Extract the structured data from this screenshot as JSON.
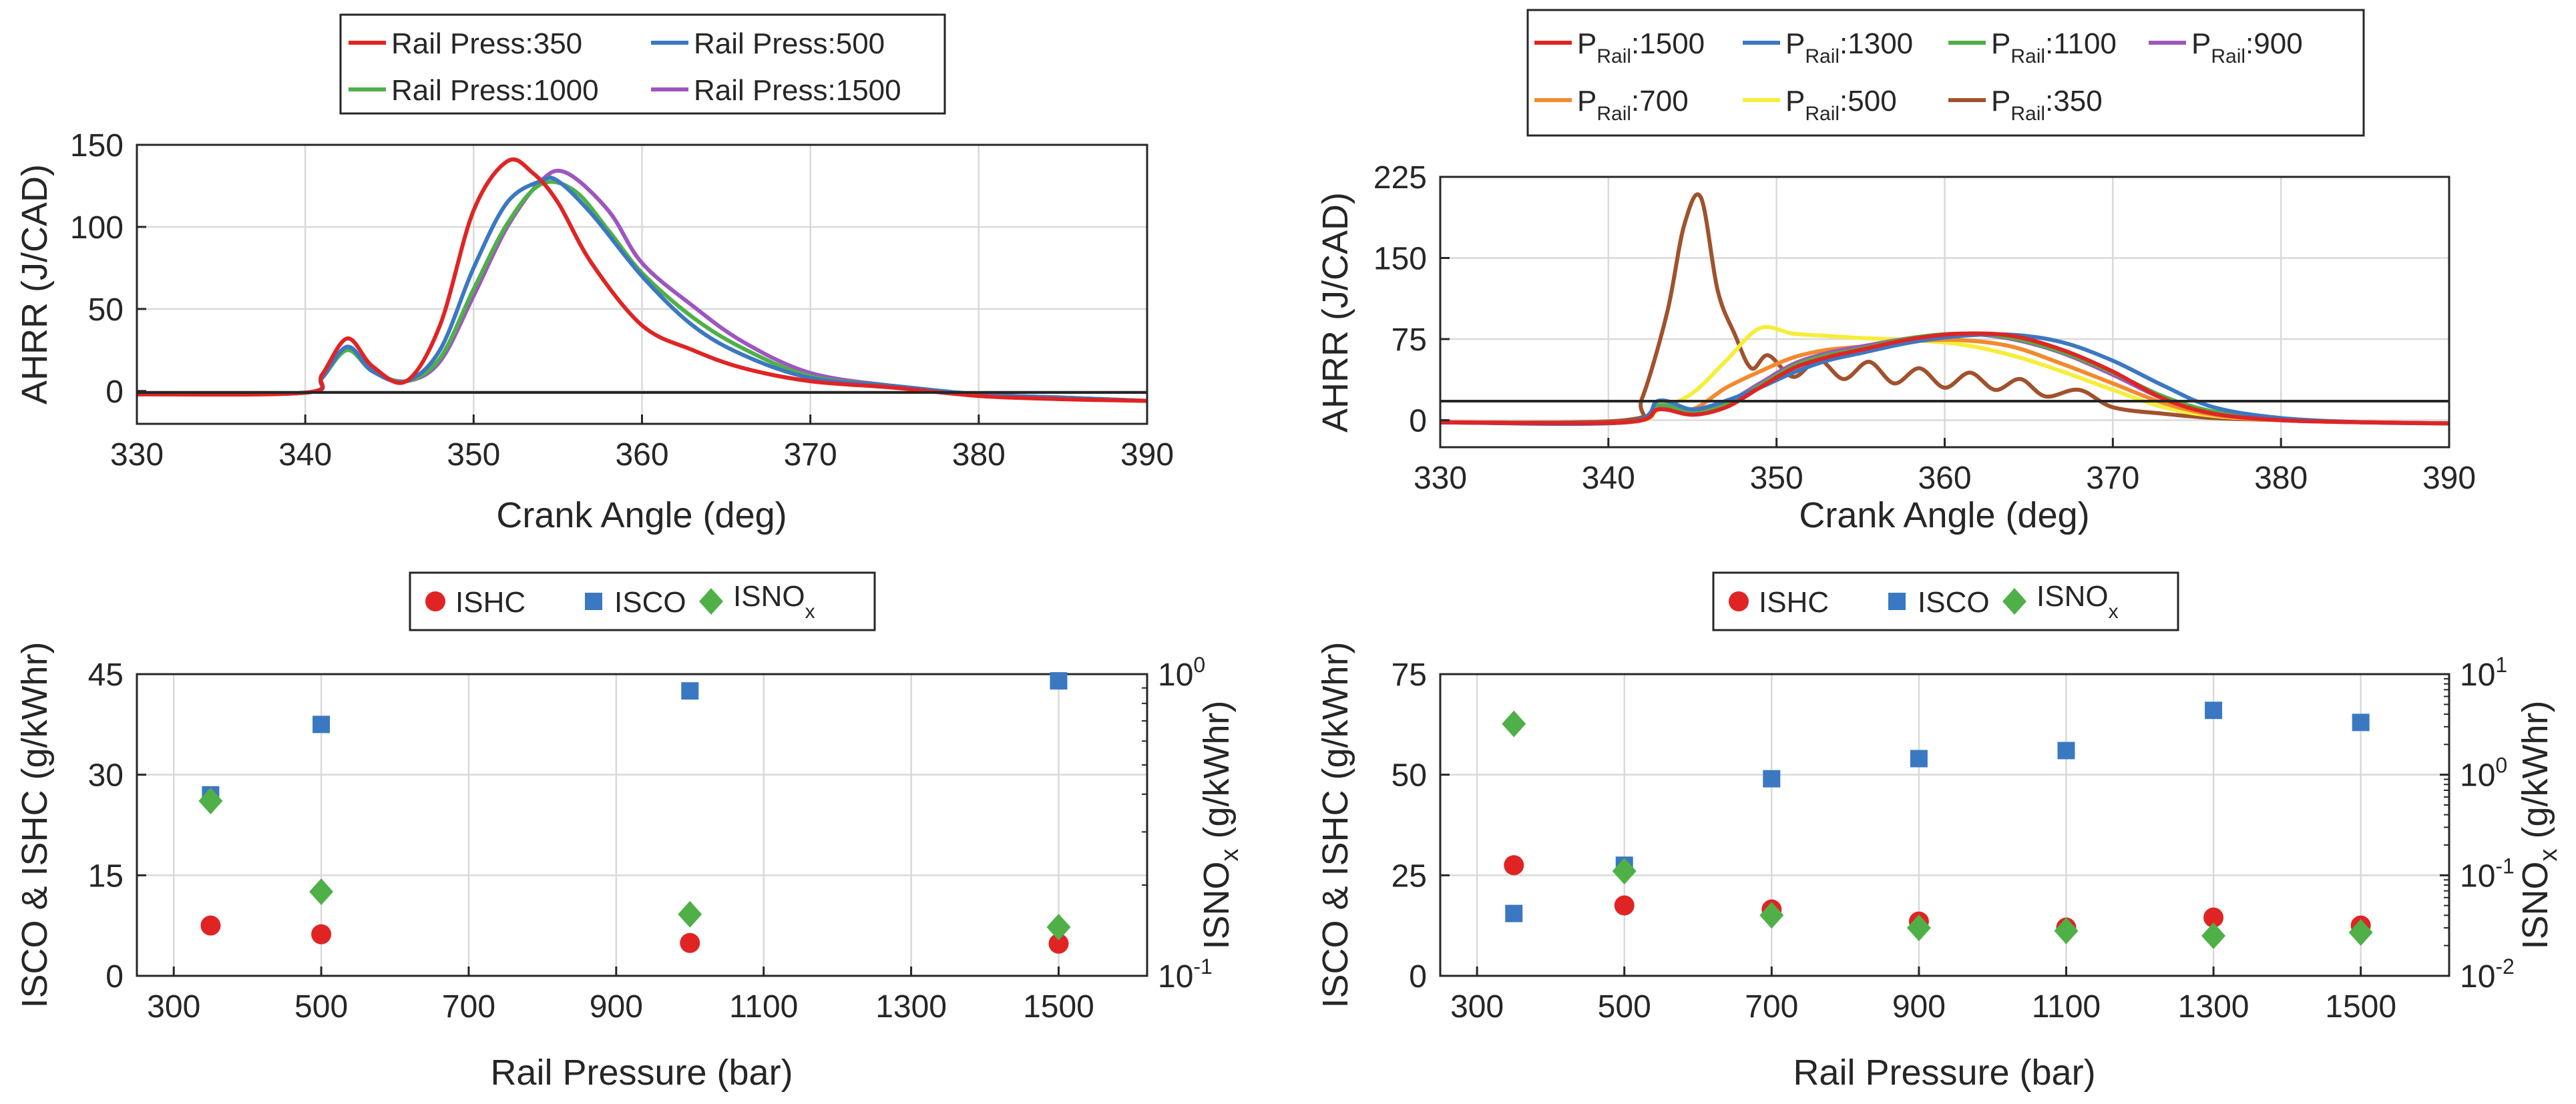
{
  "chart_data": [
    {
      "id": "tl",
      "type": "line",
      "xlabel": "Crank Angle (deg)",
      "ylabel": "AHRR (J/CAD)",
      "xlim": [
        330,
        390
      ],
      "ylim": [
        -20,
        150
      ],
      "xticks": [
        330,
        340,
        350,
        360,
        370,
        380,
        390
      ],
      "yticks": [
        0,
        50,
        100,
        150
      ],
      "grid": true,
      "legend_position": "top",
      "series": [
        {
          "name": "Rail Press:350",
          "color": "#e02424",
          "x": [
            330,
            340,
            341,
            342.5,
            344,
            346,
            348,
            350,
            352,
            353.5,
            355,
            357,
            360,
            363,
            366,
            370,
            375,
            380,
            385,
            390
          ],
          "y": [
            -2,
            -1,
            10,
            32,
            15,
            6,
            40,
            110,
            140,
            133,
            115,
            78,
            40,
            25,
            14,
            6,
            2,
            -3,
            -5,
            -6
          ]
        },
        {
          "name": "Rail Press:500",
          "color": "#3b78c2",
          "x": [
            330,
            340,
            341,
            342.5,
            344,
            346,
            348,
            350,
            352,
            354,
            355,
            357,
            360,
            363,
            366,
            370,
            375,
            380,
            385,
            390
          ],
          "y": [
            -2,
            -1,
            8,
            27,
            12,
            6,
            25,
            75,
            115,
            128,
            128,
            108,
            70,
            40,
            22,
            8,
            3,
            -2,
            -4,
            -6
          ]
        },
        {
          "name": "Rail Press:1000",
          "color": "#4fb048",
          "x": [
            330,
            340,
            341,
            342.5,
            344,
            346,
            348,
            350,
            352,
            354,
            356,
            358,
            360,
            363,
            366,
            370,
            375,
            380,
            385,
            390
          ],
          "y": [
            -2,
            -1,
            8,
            25,
            12,
            6,
            20,
            62,
            102,
            126,
            122,
            98,
            72,
            45,
            26,
            9,
            3,
            -2,
            -4,
            -6
          ]
        },
        {
          "name": "Rail Press:1500",
          "color": "#9e56bf",
          "x": [
            330,
            340,
            341,
            342.5,
            344,
            346,
            348,
            350,
            352,
            354,
            355.5,
            358,
            360,
            363,
            366,
            370,
            375,
            380,
            385,
            390
          ],
          "y": [
            -2,
            -1,
            8,
            25,
            12,
            6,
            18,
            58,
            100,
            128,
            133,
            110,
            78,
            52,
            30,
            11,
            3,
            -2,
            -4,
            -6
          ]
        }
      ]
    },
    {
      "id": "tr",
      "type": "line",
      "xlabel": "Crank Angle (deg)",
      "ylabel": "AHRR (J/CAD)",
      "xlim": [
        330,
        390
      ],
      "ylim": [
        -25,
        225
      ],
      "xticks": [
        330,
        340,
        350,
        360,
        370,
        380,
        390
      ],
      "yticks": [
        0,
        75,
        150,
        225
      ],
      "grid": true,
      "legend_position": "top",
      "series": [
        {
          "name": "1500",
          "color": "#e02424",
          "x": [
            330,
            341,
            343,
            345,
            347,
            349,
            351,
            353,
            355,
            358,
            361,
            364,
            367,
            370,
            373,
            376,
            380,
            385,
            390
          ],
          "y": [
            -2,
            -2,
            10,
            5,
            12,
            30,
            48,
            58,
            65,
            75,
            80,
            78,
            65,
            45,
            20,
            6,
            0,
            -2,
            -3
          ]
        },
        {
          "name": "1300",
          "color": "#3b78c2",
          "x": [
            330,
            341,
            343,
            345,
            347,
            349,
            351,
            353,
            355,
            358,
            361,
            364,
            367,
            370,
            373,
            376,
            380,
            385,
            390
          ],
          "y": [
            -2,
            -2,
            18,
            10,
            18,
            30,
            44,
            55,
            62,
            72,
            78,
            79,
            72,
            55,
            32,
            12,
            2,
            -2,
            -3
          ]
        },
        {
          "name": "1100",
          "color": "#4fb048",
          "x": [
            330,
            341,
            343,
            345,
            347,
            349,
            351,
            353,
            355,
            358,
            361,
            364,
            367,
            370,
            373,
            376,
            380,
            385,
            390
          ],
          "y": [
            -2,
            -2,
            14,
            8,
            16,
            32,
            50,
            60,
            66,
            76,
            80,
            76,
            63,
            44,
            22,
            8,
            1,
            -2,
            -3
          ]
        },
        {
          "name": "900",
          "color": "#9e56bf",
          "x": [
            330,
            341,
            343,
            345,
            347,
            349,
            351,
            353,
            355,
            358,
            361,
            364,
            367,
            370,
            373,
            376,
            380,
            385,
            390
          ],
          "y": [
            -2,
            -2,
            12,
            7,
            16,
            34,
            52,
            62,
            68,
            76,
            80,
            75,
            62,
            42,
            20,
            7,
            0,
            -2,
            -3
          ]
        },
        {
          "name": "700",
          "color": "#f28a2e",
          "x": [
            330,
            341,
            343,
            345,
            347,
            349,
            351,
            353,
            355,
            358,
            361,
            364,
            367,
            370,
            373,
            376,
            380,
            385,
            390
          ],
          "y": [
            -2,
            -2,
            10,
            10,
            30,
            45,
            58,
            65,
            68,
            73,
            74,
            68,
            52,
            34,
            16,
            5,
            0,
            -2,
            -3
          ]
        },
        {
          "name": "500",
          "color": "#f5ee3a",
          "x": [
            330,
            341,
            343,
            345,
            347,
            349,
            351,
            353,
            355,
            358,
            361,
            364,
            367,
            370,
            373,
            376,
            380,
            385,
            390
          ],
          "y": [
            -2,
            -2,
            10,
            25,
            55,
            85,
            80,
            78,
            76,
            74,
            70,
            60,
            45,
            28,
            12,
            4,
            0,
            -2,
            -3
          ]
        },
        {
          "name": "350",
          "color": "#a0522d",
          "x": [
            330,
            341,
            342,
            343.5,
            344.5,
            345.5,
            346.5,
            347.5,
            348.5,
            349.5,
            351,
            352.5,
            354,
            355.5,
            357,
            358.5,
            360,
            361.5,
            363,
            364.5,
            366,
            368,
            370,
            373,
            376,
            380,
            385,
            390
          ],
          "y": [
            -2,
            0,
            20,
            100,
            180,
            206,
            120,
            80,
            48,
            60,
            40,
            56,
            38,
            54,
            34,
            48,
            30,
            44,
            28,
            38,
            22,
            28,
            12,
            6,
            2,
            0,
            -2,
            -3
          ]
        }
      ]
    },
    {
      "id": "bl",
      "type": "scatter",
      "xlabel": "Rail Pressure (bar)",
      "ylabel": "ISCO & ISHC (g/kWhr)",
      "ylabel_right": "ISNOx (g/kWhr)",
      "xlim": [
        250,
        1620
      ],
      "ylim": [
        0,
        45
      ],
      "xticks": [
        300,
        500,
        700,
        900,
        1100,
        1300,
        1500
      ],
      "yticks": [
        0,
        15,
        30,
        45
      ],
      "yright_log_exponents": [
        -1,
        0
      ],
      "grid": true,
      "legend_position": "top",
      "series": [
        {
          "name": "ISHC",
          "marker": "circle",
          "color": "#e02424",
          "axis": "left",
          "x": [
            350,
            500,
            1000,
            1500
          ],
          "y": [
            7.5,
            6.2,
            4.9,
            4.8
          ]
        },
        {
          "name": "ISCO",
          "marker": "square",
          "color": "#3b78c2",
          "axis": "left",
          "x": [
            350,
            500,
            1000,
            1500
          ],
          "y": [
            27,
            37.5,
            42.5,
            44
          ]
        },
        {
          "name": "ISNOx",
          "marker": "diamond",
          "color": "#4fb048",
          "axis": "right",
          "x": [
            350,
            500,
            1000,
            1500
          ],
          "y": [
            0.38,
            0.19,
            0.16,
            0.145
          ]
        }
      ]
    },
    {
      "id": "br",
      "type": "scatter",
      "xlabel": "Rail Pressure (bar)",
      "ylabel": "ISCO & ISHC (g/kWhr)",
      "ylabel_right": "ISNOx (g/kWhr)",
      "xlim": [
        250,
        1620
      ],
      "ylim": [
        0,
        75
      ],
      "xticks": [
        300,
        500,
        700,
        900,
        1100,
        1300,
        1500
      ],
      "yticks": [
        0,
        25,
        50,
        75
      ],
      "yright_log_exponents": [
        -2,
        -1,
        0,
        1
      ],
      "grid": true,
      "legend_position": "top",
      "series": [
        {
          "name": "ISHC",
          "marker": "circle",
          "color": "#e02424",
          "axis": "left",
          "x": [
            350,
            500,
            700,
            900,
            1100,
            1300,
            1500
          ],
          "y": [
            27.5,
            17.5,
            16.5,
            13.5,
            12,
            14.5,
            12.5
          ]
        },
        {
          "name": "ISCO",
          "marker": "square",
          "color": "#3b78c2",
          "axis": "left",
          "x": [
            350,
            500,
            700,
            900,
            1100,
            1300,
            1500
          ],
          "y": [
            15.5,
            27.5,
            49,
            54,
            56,
            66,
            63
          ]
        },
        {
          "name": "ISNOx",
          "marker": "diamond",
          "color": "#4fb048",
          "axis": "right",
          "x": [
            350,
            500,
            700,
            900,
            1100,
            1300,
            1500
          ],
          "y": [
            3.2,
            0.11,
            0.04,
            0.03,
            0.028,
            0.025,
            0.027
          ]
        }
      ]
    }
  ],
  "legends": {
    "tl": [
      "Rail Press:350",
      "Rail Press:500",
      "Rail Press:1000",
      "Rail Press:1500"
    ],
    "tr": {
      "prefix": "P",
      "subscript": "Rail",
      "entries": [
        ":1500",
        ":1300",
        ":1100",
        ":900",
        ":700",
        ":500",
        ":350"
      ]
    },
    "bl": {
      "hc": "ISHC",
      "co": "ISCO",
      "nox": "ISNO",
      "nox_sub": "x"
    },
    "br": {
      "hc": "ISHC",
      "co": "ISCO",
      "nox": "ISNO",
      "nox_sub": "x"
    }
  },
  "right_axis": {
    "base": "10",
    "label": "ISNO",
    "label_sub": "x",
    "label_unit": " (g/kWhr)"
  }
}
